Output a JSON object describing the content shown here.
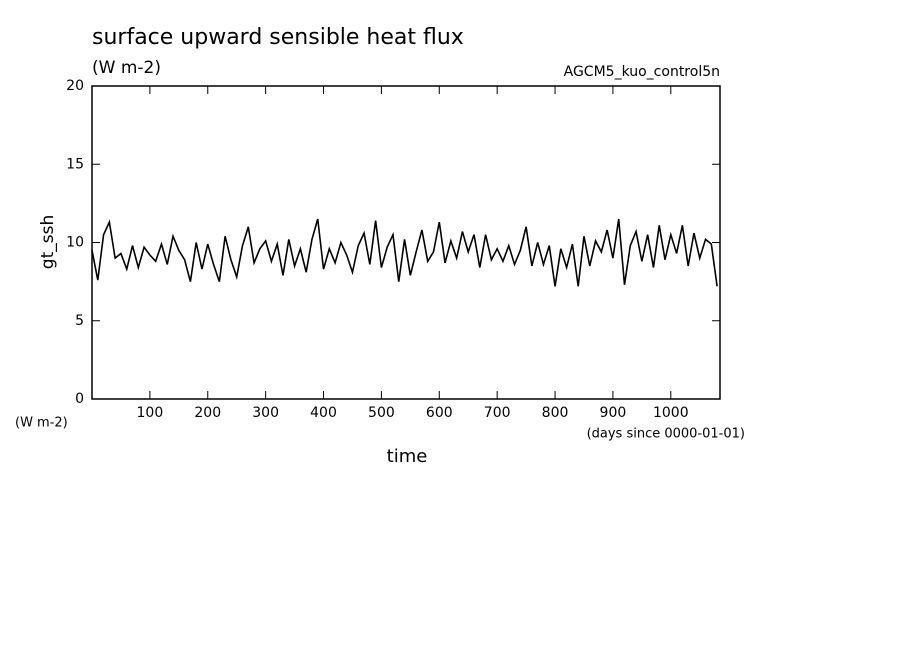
{
  "chart_data": {
    "type": "line",
    "title": "surface upward sensible heat flux",
    "subtitle": "(W m-2)",
    "annotation": "AGCM5_kuo_control5n",
    "y_label": "gt_ssh",
    "y_unit": "(W m-2)",
    "x_label": "time",
    "x_unit": "(days since 0000-01-01)",
    "x": [
      0,
      10,
      20,
      30,
      40,
      50,
      60,
      70,
      80,
      90,
      100,
      110,
      120,
      130,
      140,
      150,
      160,
      170,
      180,
      190,
      200,
      210,
      220,
      230,
      240,
      250,
      260,
      270,
      280,
      290,
      300,
      310,
      320,
      330,
      340,
      350,
      360,
      370,
      380,
      390,
      400,
      410,
      420,
      430,
      440,
      450,
      460,
      470,
      480,
      490,
      500,
      510,
      520,
      530,
      540,
      550,
      560,
      570,
      580,
      590,
      600,
      610,
      620,
      630,
      640,
      650,
      660,
      670,
      680,
      690,
      700,
      710,
      720,
      730,
      740,
      750,
      760,
      770,
      780,
      790,
      800,
      810,
      820,
      830,
      840,
      850,
      860,
      870,
      880,
      890,
      900,
      910,
      920,
      930,
      940,
      950,
      960,
      970,
      980,
      990,
      1000,
      1010,
      1020,
      1030,
      1040,
      1050,
      1060,
      1070,
      1080
    ],
    "series": [
      {
        "name": "gt_ssh",
        "color": "#000000",
        "values": [
          9.5,
          7.6,
          10.5,
          11.3,
          9.0,
          9.3,
          8.3,
          9.8,
          8.4,
          9.7,
          9.2,
          8.8,
          9.9,
          8.6,
          10.4,
          9.5,
          8.9,
          7.5,
          10.0,
          8.3,
          9.9,
          8.6,
          7.5,
          10.4,
          8.9,
          7.8,
          9.8,
          11.0,
          8.7,
          9.6,
          10.1,
          8.8,
          9.9,
          7.9,
          10.2,
          8.5,
          9.6,
          8.1,
          10.2,
          11.5,
          8.3,
          9.6,
          8.7,
          10.0,
          9.2,
          8.1,
          9.8,
          10.6,
          8.6,
          11.4,
          8.4,
          9.7,
          10.5,
          7.5,
          10.2,
          7.9,
          9.4,
          10.8,
          8.8,
          9.4,
          11.3,
          8.7,
          10.1,
          9.0,
          10.7,
          9.4,
          10.5,
          8.4,
          10.5,
          8.9,
          9.6,
          8.8,
          9.8,
          8.6,
          9.5,
          11.0,
          8.5,
          10.0,
          8.6,
          9.8,
          7.2,
          9.6,
          8.4,
          9.9,
          7.2,
          10.4,
          8.5,
          10.1,
          9.4,
          10.8,
          9.0,
          11.5,
          7.3,
          9.8,
          10.7,
          8.8,
          10.5,
          8.4,
          11.1,
          8.9,
          10.5,
          9.3,
          11.1,
          8.5,
          10.6,
          9.0,
          10.2,
          9.9,
          7.2
        ]
      }
    ],
    "xlim": [
      0,
      1085
    ],
    "ylim": [
      0,
      20
    ],
    "xticks": [
      100,
      200,
      300,
      400,
      500,
      600,
      700,
      800,
      900,
      1000
    ],
    "yticks": [
      0,
      5,
      10,
      15,
      20
    ]
  }
}
